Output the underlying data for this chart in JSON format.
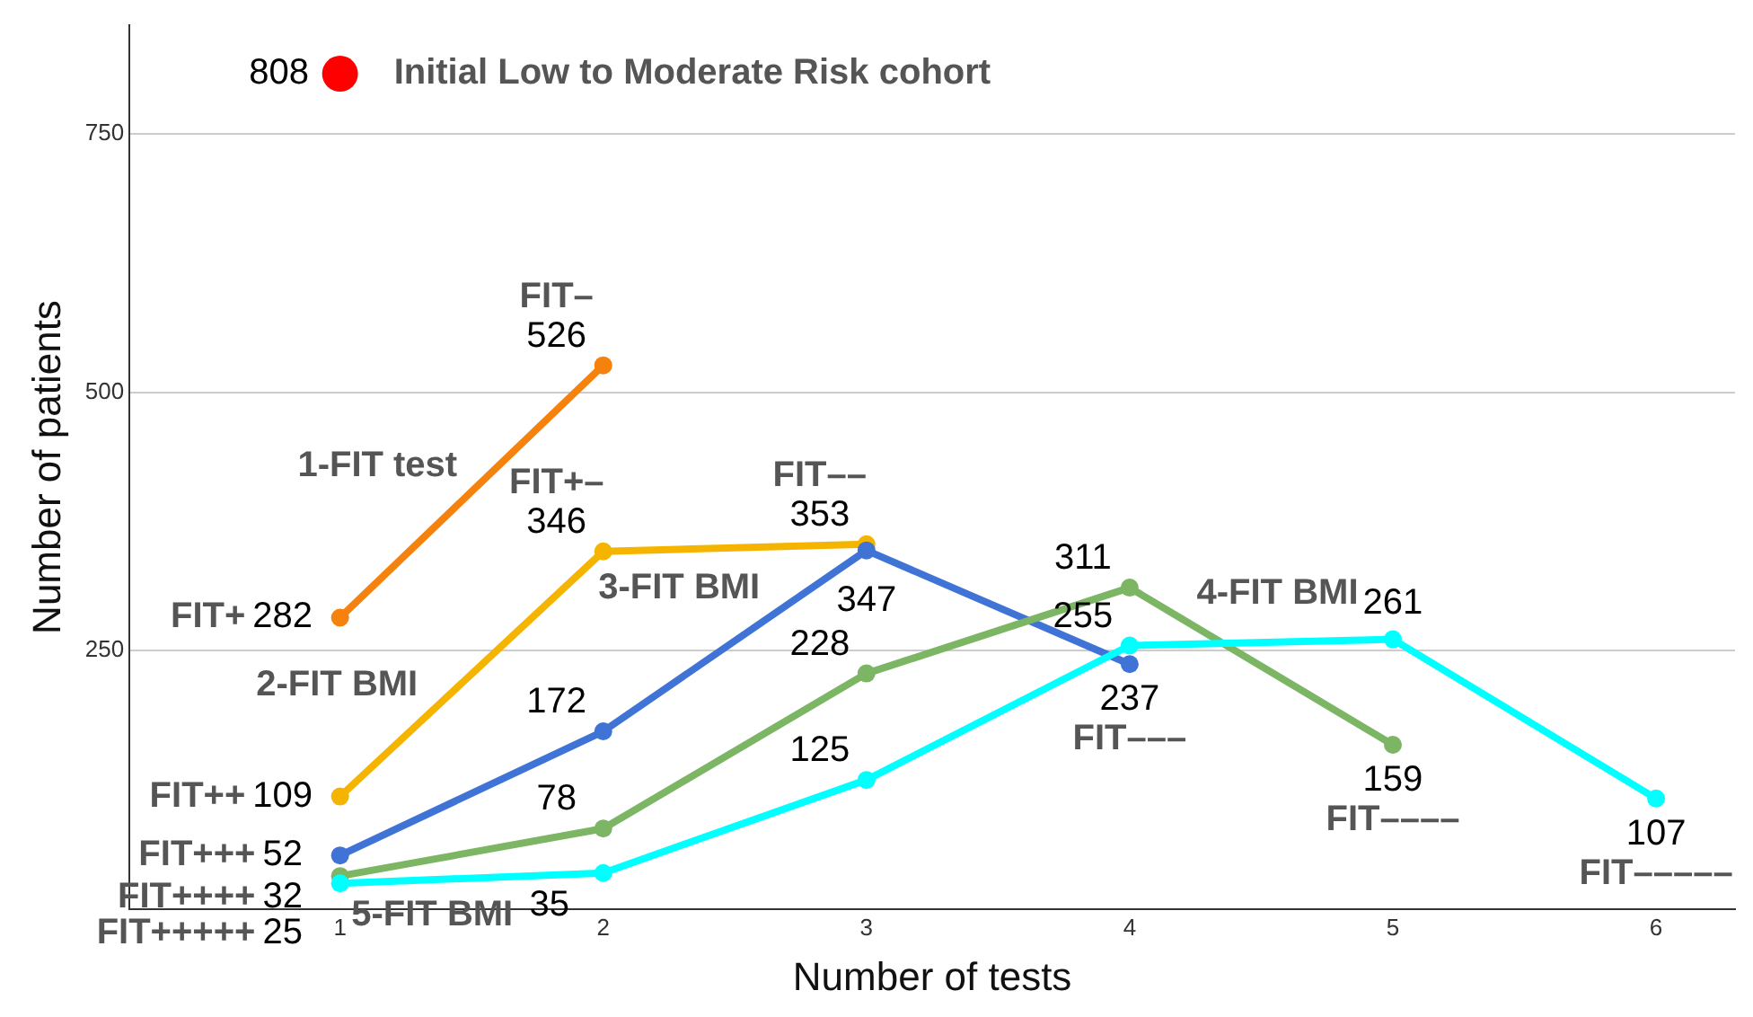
{
  "chart_data": {
    "type": "line",
    "xlabel": "Number of tests",
    "ylabel": "Number of patients",
    "xlim": [
      0.2,
      6.3
    ],
    "xticks": [
      1,
      2,
      3,
      4,
      5,
      6
    ],
    "ylim": [
      0,
      855
    ],
    "yticks": [
      250,
      500,
      750
    ],
    "grid": "y",
    "legend": false,
    "marker": "circle",
    "line_style": "solid",
    "data_labels": true,
    "series": [
      {
        "name": "Initial Low to Moderate Risk cohort",
        "type": "scatter",
        "color": "#ff0000",
        "x": [
          1
        ],
        "values": [
          808
        ]
      },
      {
        "name": "1-FIT test",
        "color": "#f5820d",
        "x": [
          1,
          2
        ],
        "values": [
          282,
          526
        ]
      },
      {
        "name": "2-FIT BMI",
        "color": "#f4b400",
        "x": [
          1,
          2,
          3
        ],
        "values": [
          109,
          346,
          353
        ]
      },
      {
        "name": "3-FIT BMI",
        "color": "#3f74d6",
        "x": [
          1,
          2,
          3,
          4
        ],
        "values": [
          52,
          172,
          347,
          237
        ]
      },
      {
        "name": "4-FIT BMI",
        "color": "#7cb563",
        "x": [
          1,
          2,
          3,
          4,
          5
        ],
        "values": [
          32,
          78,
          228,
          311,
          159
        ]
      },
      {
        "name": "5-FIT BMI",
        "color": "#00ffff",
        "x": [
          1,
          2,
          3,
          4,
          5,
          6
        ],
        "values": [
          25,
          35,
          125,
          255,
          261,
          107
        ]
      }
    ],
    "annotations": [
      {
        "text": "FIT+",
        "x": 1,
        "y": 282
      },
      {
        "text": "FIT–",
        "x": 2,
        "y": 526
      },
      {
        "text": "FIT++",
        "x": 1,
        "y": 109
      },
      {
        "text": "FIT+–",
        "x": 2,
        "y": 346
      },
      {
        "text": "FIT––",
        "x": 3,
        "y": 353
      },
      {
        "text": "FIT+++",
        "x": 1,
        "y": 52
      },
      {
        "text": "FIT–––",
        "x": 4,
        "y": 237
      },
      {
        "text": "FIT++++",
        "x": 1,
        "y": 32
      },
      {
        "text": "FIT––––",
        "x": 5,
        "y": 159
      },
      {
        "text": "FIT+++++",
        "x": 1,
        "y": 25
      },
      {
        "text": "FIT–––––",
        "x": 6,
        "y": 107
      }
    ]
  }
}
